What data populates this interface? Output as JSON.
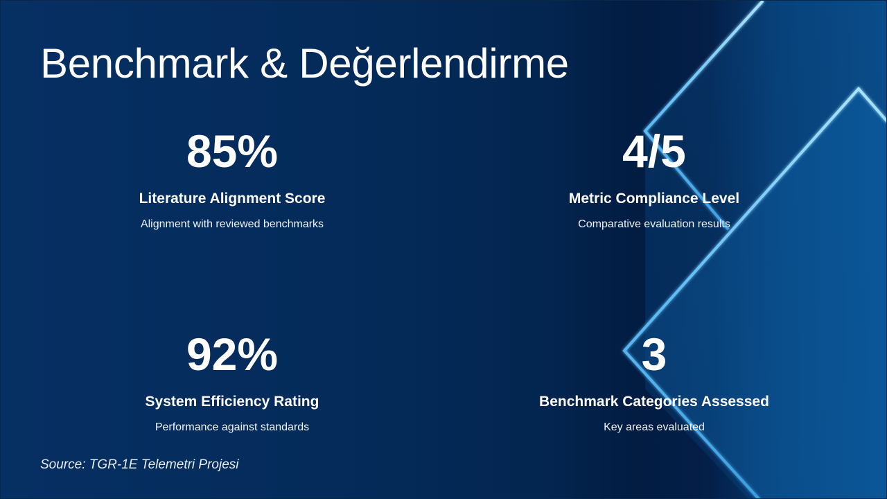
{
  "title": "Benchmark & Değerlendirme",
  "stats": [
    {
      "value": "85%",
      "label": "Literature Alignment Score",
      "description": "Alignment with reviewed benchmarks"
    },
    {
      "value": "4/5",
      "label": "Metric Compliance Level",
      "description": "Comparative evaluation results"
    },
    {
      "value": "92%",
      "label": "System Efficiency Rating",
      "description": "Performance against standards"
    },
    {
      "value": "3",
      "label": "Benchmark Categories Assessed",
      "description": "Key areas evaluated"
    }
  ],
  "source": "Source: TGR-1E Telemetri Projesi",
  "colors": {
    "background": "#042a58",
    "accent_line": "#5fb8f0",
    "text": "#ffffff"
  }
}
